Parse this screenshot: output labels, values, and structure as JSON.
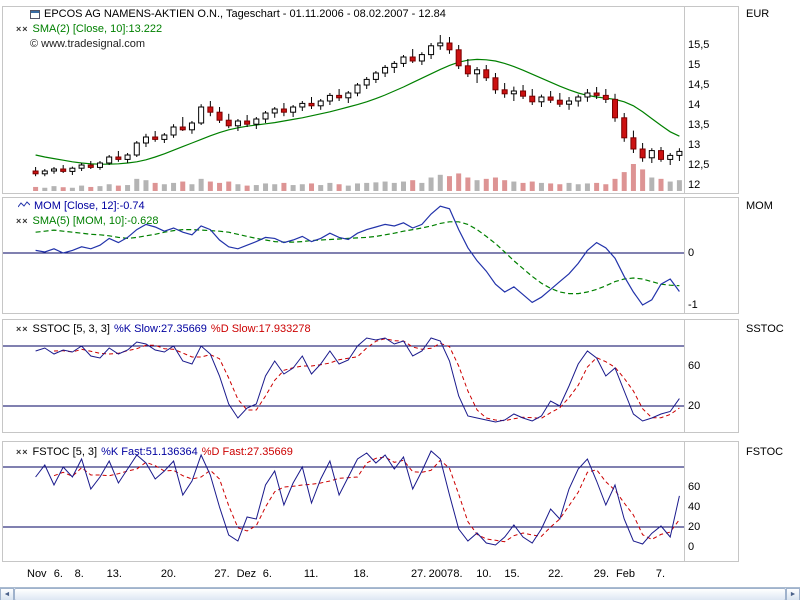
{
  "icons": {
    "collapse": "××",
    "left_arrow": "◄",
    "right_arrow": "►"
  },
  "panels": {
    "price": {
      "title": "EPCOS AG NAMENS-AKTIEN O.N., Tageschart - 01.11.2006 - 08.02.2007 - 12.84",
      "sma_label": "SMA(2) [Close, 10]:13.222",
      "watermark": "© www.tradesignal.com",
      "axis_name": "EUR"
    },
    "mom": {
      "line1": "MOM [Close, 12]:-0.74",
      "line2": "SMA(5) [MOM, 10]:-0.628",
      "axis_name": "MOM"
    },
    "sstoc": {
      "name": "SSTOC [5, 3, 3]",
      "k": "%K Slow:27.35669",
      "d": "%D Slow:17.933278",
      "axis_name": "SSTOC"
    },
    "fstoc": {
      "name": "FSTOC [5, 3]",
      "k": "%K Fast:51.136364",
      "d": "%D Fast:27.35669",
      "axis_name": "FSTOC"
    }
  },
  "time_axis": {
    "labels": [
      {
        "text": "Nov",
        "pos": 0.0
      },
      {
        "text": "6.",
        "pos": 0.041
      },
      {
        "text": "8.",
        "pos": 0.073
      },
      {
        "text": "13.",
        "pos": 0.122
      },
      {
        "text": "20.",
        "pos": 0.205
      },
      {
        "text": "27.",
        "pos": 0.287
      },
      {
        "text": "Dez",
        "pos": 0.321
      },
      {
        "text": "6.",
        "pos": 0.361
      },
      {
        "text": "11.",
        "pos": 0.424
      },
      {
        "text": "18.",
        "pos": 0.5
      },
      {
        "text": "27.",
        "pos": 0.588
      },
      {
        "text": "2007",
        "pos": 0.615
      },
      {
        "text": "8.",
        "pos": 0.653
      },
      {
        "text": "10.",
        "pos": 0.688
      },
      {
        "text": "15.",
        "pos": 0.731
      },
      {
        "text": "22.",
        "pos": 0.798
      },
      {
        "text": "29.",
        "pos": 0.868
      },
      {
        "text": "Feb",
        "pos": 0.902
      },
      {
        "text": "7.",
        "pos": 0.963
      }
    ]
  },
  "colors": {
    "up_candle": "#ffffff",
    "up_stroke": "#000000",
    "down_candle": "#cc1111",
    "down_stroke": "#7a0000",
    "wick": "#000000",
    "sma": "#008000",
    "mom_line": "#2233aa",
    "k_line": "#1a1a8c",
    "d_line": "#cc0000",
    "ref_line": "#000060",
    "volume_up": "#b4b4b4",
    "volume_down": "#dd9494",
    "separator": "#c6c6c6"
  },
  "chart_data": [
    {
      "type": "candlestick",
      "title": "EPCOS AG NAMENS-AKTIEN O.N., Tageschart - 01.11.2006 - 08.02.2007 - 12.84",
      "ylabel": "EUR",
      "ylim": [
        11.9,
        15.95
      ],
      "yticks": [
        {
          "t": "15,5",
          "v": 15.5
        },
        {
          "t": "15",
          "v": 15
        },
        {
          "t": "14,5",
          "v": 14.5
        },
        {
          "t": "14",
          "v": 14
        },
        {
          "t": "13,5",
          "v": 13.5
        },
        {
          "t": "13",
          "v": 13
        },
        {
          "t": "12,5",
          "v": 12.5
        },
        {
          "t": "12",
          "v": 12
        }
      ],
      "last_close": 12.84,
      "sma_period": 10,
      "sma_last": 13.222,
      "candles": [
        [
          12.35,
          12.45,
          12.22,
          12.28
        ],
        [
          12.28,
          12.4,
          12.22,
          12.35
        ],
        [
          12.35,
          12.45,
          12.28,
          12.4
        ],
        [
          12.4,
          12.5,
          12.3,
          12.34
        ],
        [
          12.34,
          12.46,
          12.25,
          12.42
        ],
        [
          12.42,
          12.55,
          12.35,
          12.5
        ],
        [
          12.5,
          12.6,
          12.4,
          12.44
        ],
        [
          12.44,
          12.6,
          12.38,
          12.55
        ],
        [
          12.55,
          12.75,
          12.5,
          12.7
        ],
        [
          12.7,
          12.85,
          12.58,
          12.64
        ],
        [
          12.64,
          12.8,
          12.55,
          12.75
        ],
        [
          12.75,
          13.1,
          12.7,
          13.05
        ],
        [
          13.05,
          13.28,
          12.95,
          13.2
        ],
        [
          13.2,
          13.35,
          13.08,
          13.14
        ],
        [
          13.14,
          13.3,
          13.05,
          13.25
        ],
        [
          13.25,
          13.52,
          13.18,
          13.45
        ],
        [
          13.45,
          13.7,
          13.35,
          13.38
        ],
        [
          13.38,
          13.6,
          13.28,
          13.55
        ],
        [
          13.55,
          14.02,
          13.5,
          13.95
        ],
        [
          13.95,
          14.1,
          13.72,
          13.82
        ],
        [
          13.82,
          13.95,
          13.55,
          13.62
        ],
        [
          13.62,
          13.78,
          13.42,
          13.48
        ],
        [
          13.48,
          13.65,
          13.35,
          13.6
        ],
        [
          13.6,
          13.75,
          13.45,
          13.52
        ],
        [
          13.52,
          13.7,
          13.4,
          13.65
        ],
        [
          13.65,
          13.85,
          13.55,
          13.8
        ],
        [
          13.8,
          13.95,
          13.68,
          13.9
        ],
        [
          13.9,
          14.05,
          13.72,
          13.82
        ],
        [
          13.82,
          14.0,
          13.7,
          13.95
        ],
        [
          13.95,
          14.1,
          13.85,
          14.04
        ],
        [
          14.04,
          14.2,
          13.9,
          13.98
        ],
        [
          13.98,
          14.15,
          13.88,
          14.1
        ],
        [
          14.1,
          14.3,
          14.0,
          14.24
        ],
        [
          14.24,
          14.4,
          14.1,
          14.18
        ],
        [
          14.18,
          14.35,
          14.05,
          14.3
        ],
        [
          14.3,
          14.55,
          14.22,
          14.5
        ],
        [
          14.5,
          14.7,
          14.4,
          14.64
        ],
        [
          14.64,
          14.85,
          14.55,
          14.8
        ],
        [
          14.8,
          15.0,
          14.7,
          14.94
        ],
        [
          14.94,
          15.1,
          14.8,
          15.04
        ],
        [
          15.04,
          15.25,
          14.95,
          15.2
        ],
        [
          15.2,
          15.4,
          15.05,
          15.1
        ],
        [
          15.1,
          15.32,
          15.0,
          15.26
        ],
        [
          15.26,
          15.55,
          15.15,
          15.48
        ],
        [
          15.48,
          15.75,
          15.38,
          15.55
        ],
        [
          15.55,
          15.7,
          15.28,
          15.38
        ],
        [
          15.38,
          15.5,
          14.9,
          14.98
        ],
        [
          14.98,
          15.15,
          14.7,
          14.78
        ],
        [
          14.78,
          14.95,
          14.55,
          14.88
        ],
        [
          14.88,
          15.0,
          14.6,
          14.68
        ],
        [
          14.68,
          14.8,
          14.28,
          14.38
        ],
        [
          14.38,
          14.55,
          14.18,
          14.28
        ],
        [
          14.28,
          14.46,
          14.1,
          14.35
        ],
        [
          14.35,
          14.5,
          14.15,
          14.22
        ],
        [
          14.22,
          14.4,
          14.0,
          14.08
        ],
        [
          14.08,
          14.26,
          13.95,
          14.2
        ],
        [
          14.2,
          14.35,
          14.05,
          14.12
        ],
        [
          14.12,
          14.3,
          13.95,
          14.02
        ],
        [
          14.02,
          14.2,
          13.88,
          14.1
        ],
        [
          14.1,
          14.26,
          13.96,
          14.2
        ],
        [
          14.2,
          14.4,
          14.08,
          14.3
        ],
        [
          14.3,
          14.45,
          14.15,
          14.24
        ],
        [
          14.24,
          14.4,
          14.05,
          14.14
        ],
        [
          14.14,
          14.28,
          13.58,
          13.68
        ],
        [
          13.68,
          13.8,
          13.08,
          13.18
        ],
        [
          13.18,
          13.36,
          12.8,
          12.9
        ],
        [
          12.9,
          13.05,
          12.58,
          12.68
        ],
        [
          12.68,
          12.92,
          12.55,
          12.86
        ],
        [
          12.86,
          12.95,
          12.58,
          12.64
        ],
        [
          12.64,
          12.8,
          12.5,
          12.74
        ],
        [
          12.74,
          12.92,
          12.6,
          12.84
        ]
      ],
      "sma_values": [
        12.75,
        12.7,
        12.66,
        12.62,
        12.58,
        12.55,
        12.53,
        12.52,
        12.52,
        12.53,
        12.55,
        12.58,
        12.63,
        12.7,
        12.78,
        12.87,
        12.96,
        13.05,
        13.14,
        13.23,
        13.31,
        13.38,
        13.43,
        13.47,
        13.5,
        13.53,
        13.56,
        13.6,
        13.64,
        13.68,
        13.73,
        13.78,
        13.83,
        13.89,
        13.95,
        14.01,
        14.08,
        14.16,
        14.25,
        14.35,
        14.45,
        14.56,
        14.67,
        14.78,
        14.89,
        14.99,
        15.07,
        15.12,
        15.14,
        15.13,
        15.1,
        15.04,
        14.96,
        14.87,
        14.77,
        14.67,
        14.57,
        14.47,
        14.38,
        14.3,
        14.24,
        14.2,
        14.17,
        14.14,
        14.08,
        13.98,
        13.83,
        13.66,
        13.49,
        13.33,
        13.22
      ],
      "volume": [
        0.15,
        0.12,
        0.18,
        0.14,
        0.12,
        0.2,
        0.15,
        0.18,
        0.25,
        0.2,
        0.22,
        0.45,
        0.4,
        0.3,
        0.25,
        0.3,
        0.35,
        0.25,
        0.45,
        0.35,
        0.3,
        0.35,
        0.25,
        0.2,
        0.22,
        0.28,
        0.25,
        0.3,
        0.22,
        0.25,
        0.28,
        0.22,
        0.3,
        0.25,
        0.2,
        0.28,
        0.3,
        0.32,
        0.35,
        0.3,
        0.35,
        0.4,
        0.3,
        0.5,
        0.6,
        0.55,
        0.65,
        0.5,
        0.4,
        0.45,
        0.5,
        0.4,
        0.35,
        0.3,
        0.35,
        0.3,
        0.28,
        0.25,
        0.3,
        0.25,
        0.28,
        0.3,
        0.25,
        0.45,
        0.7,
        1.0,
        0.8,
        0.5,
        0.45,
        0.35,
        0.4
      ]
    },
    {
      "type": "line",
      "title": "MOM [Close, 12]",
      "ylabel": "MOM",
      "last_value": -0.74,
      "sma_last": -0.628,
      "yticks": [
        {
          "t": "0",
          "v": 0
        },
        {
          "t": "-1",
          "v": -1
        }
      ],
      "zero_line": 0,
      "values": [
        0.05,
        0.02,
        0.08,
        0.0,
        0.05,
        0.12,
        0.08,
        0.15,
        0.28,
        0.2,
        0.3,
        0.45,
        0.55,
        0.5,
        0.42,
        0.48,
        0.4,
        0.35,
        0.52,
        0.45,
        0.25,
        0.12,
        0.08,
        0.15,
        0.22,
        0.3,
        0.28,
        0.2,
        0.25,
        0.32,
        0.22,
        0.28,
        0.38,
        0.3,
        0.26,
        0.38,
        0.45,
        0.5,
        0.55,
        0.52,
        0.58,
        0.48,
        0.55,
        0.75,
        0.9,
        0.85,
        0.45,
        0.1,
        -0.15,
        -0.35,
        -0.6,
        -0.75,
        -0.65,
        -0.8,
        -0.95,
        -0.85,
        -0.7,
        -0.55,
        -0.4,
        -0.2,
        0.05,
        0.2,
        0.1,
        -0.1,
        -0.45,
        -0.75,
        -1.0,
        -0.9,
        -0.6,
        -0.5,
        -0.74
      ],
      "sma_values": [
        0.4,
        0.42,
        0.44,
        0.42,
        0.4,
        0.38,
        0.36,
        0.35,
        0.33,
        0.3,
        0.28,
        0.3,
        0.33,
        0.36,
        0.4,
        0.43,
        0.45,
        0.45,
        0.44,
        0.43,
        0.42,
        0.4,
        0.36,
        0.32,
        0.28,
        0.25,
        0.22,
        0.21,
        0.21,
        0.22,
        0.24,
        0.25,
        0.26,
        0.27,
        0.28,
        0.29,
        0.3,
        0.32,
        0.35,
        0.38,
        0.42,
        0.45,
        0.48,
        0.52,
        0.57,
        0.6,
        0.6,
        0.55,
        0.45,
        0.32,
        0.18,
        0.02,
        -0.15,
        -0.3,
        -0.45,
        -0.58,
        -0.68,
        -0.75,
        -0.78,
        -0.78,
        -0.75,
        -0.7,
        -0.63,
        -0.55,
        -0.5,
        -0.48,
        -0.5,
        -0.55,
        -0.6,
        -0.62,
        -0.628
      ]
    },
    {
      "type": "line",
      "title": "SSTOC [5, 3, 3]",
      "ylabel": "SSTOC",
      "ylim": [
        0,
        100
      ],
      "yticks": [
        {
          "t": "60",
          "v": 60
        },
        {
          "t": "20",
          "v": 20
        }
      ],
      "ref_lines": [
        80,
        20
      ],
      "k_last": 27.35669,
      "d_last": 17.933278,
      "d_period": 3,
      "k_values": [
        75,
        78,
        72,
        76,
        74,
        80,
        70,
        68,
        78,
        72,
        76,
        84,
        82,
        76,
        74,
        80,
        65,
        62,
        80,
        72,
        50,
        22,
        8,
        18,
        22,
        50,
        65,
        52,
        58,
        70,
        52,
        62,
        75,
        62,
        66,
        80,
        88,
        86,
        88,
        82,
        85,
        70,
        75,
        88,
        85,
        65,
        30,
        10,
        8,
        6,
        4,
        6,
        12,
        8,
        5,
        10,
        25,
        20,
        40,
        62,
        75,
        68,
        50,
        58,
        35,
        12,
        5,
        8,
        12,
        14.5,
        27.36
      ]
    },
    {
      "type": "line",
      "title": "FSTOC [5, 3]",
      "ylabel": "FSTOC",
      "ylim": [
        0,
        100
      ],
      "yticks": [
        {
          "t": "60",
          "v": 60
        },
        {
          "t": "40",
          "v": 40
        },
        {
          "t": "20",
          "v": 20
        },
        {
          "t": "0",
          "v": 0
        }
      ],
      "ref_lines": [
        80,
        20
      ],
      "k_last": 51.136364,
      "d_last": 27.35669,
      "d_period": 3,
      "k_values": [
        70,
        82,
        62,
        80,
        70,
        88,
        58,
        70,
        86,
        64,
        78,
        92,
        84,
        68,
        76,
        86,
        52,
        66,
        92,
        72,
        40,
        12,
        6,
        30,
        28,
        62,
        76,
        42,
        64,
        80,
        44,
        68,
        86,
        52,
        70,
        88,
        94,
        84,
        92,
        78,
        90,
        58,
        76,
        96,
        88,
        52,
        18,
        6,
        14,
        4,
        2,
        10,
        22,
        10,
        4,
        18,
        38,
        28,
        58,
        78,
        88,
        66,
        42,
        62,
        28,
        6,
        3,
        13.7,
        21,
        10,
        51.14
      ]
    }
  ]
}
